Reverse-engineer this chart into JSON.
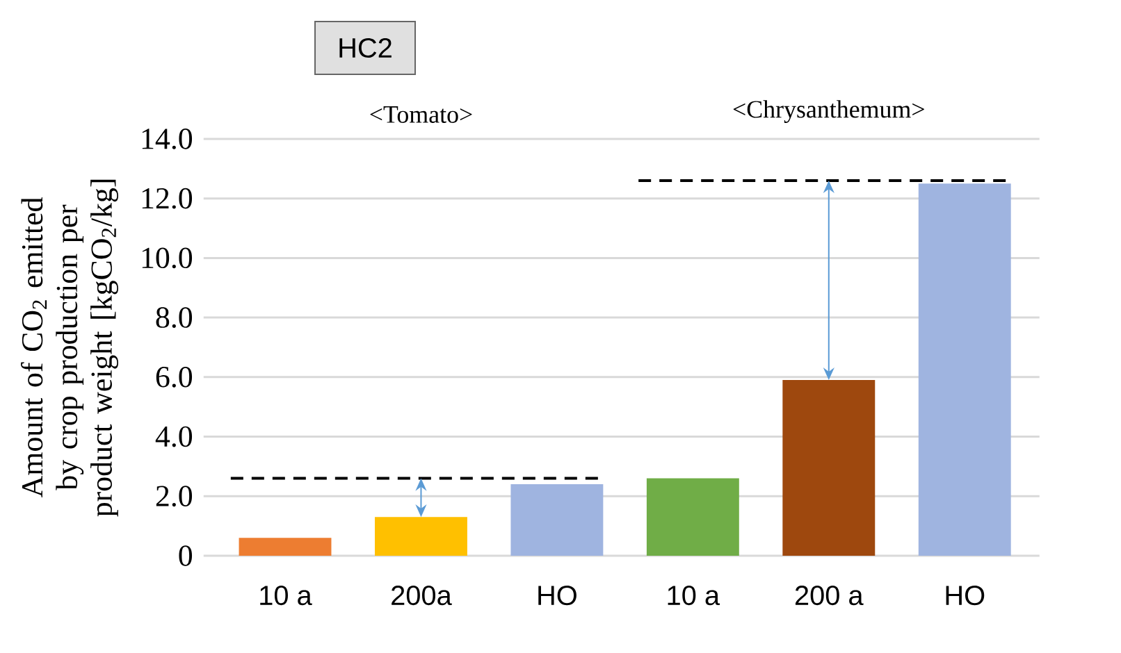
{
  "chart_data": {
    "type": "bar",
    "title": "HC2",
    "ylabel": "Amount of CO$_{2}$ emitted by crop production per product weight [kgCO$_{2}$/kg]",
    "categories": [
      "10 a",
      "200a",
      "HO",
      "10 a",
      "200 a",
      "HO"
    ],
    "values": [
      0.6,
      1.3,
      2.4,
      2.6,
      5.9,
      12.5
    ],
    "colors": [
      "#ed7d31",
      "#ffc000",
      "#9fb4e0",
      "#70ad47",
      "#9e480e",
      "#9fb4e0"
    ],
    "ylim": [
      0,
      14
    ],
    "yticks": [
      0,
      {
        "value": 2,
        "label": "2.0"
      },
      {
        "value": 4,
        "label": "4.0"
      },
      {
        "value": 6,
        "label": "6.0"
      },
      {
        "value": 8,
        "label": "8.0"
      },
      {
        "value": 10,
        "label": "10.0"
      },
      {
        "value": 12,
        "label": "12.0"
      },
      {
        "value": 14,
        "label": "14.0"
      }
    ],
    "grid": "y",
    "annotations": [
      "<Tomato>",
      "<Chrysanthemum>"
    ],
    "ref_lines": [
      {
        "axis": "y",
        "value": 2.6,
        "color": "#000000",
        "line_style": "dashed"
      },
      {
        "axis": "y",
        "value": 12.6,
        "color": "#000000",
        "line_style": "dashed"
      }
    ]
  }
}
